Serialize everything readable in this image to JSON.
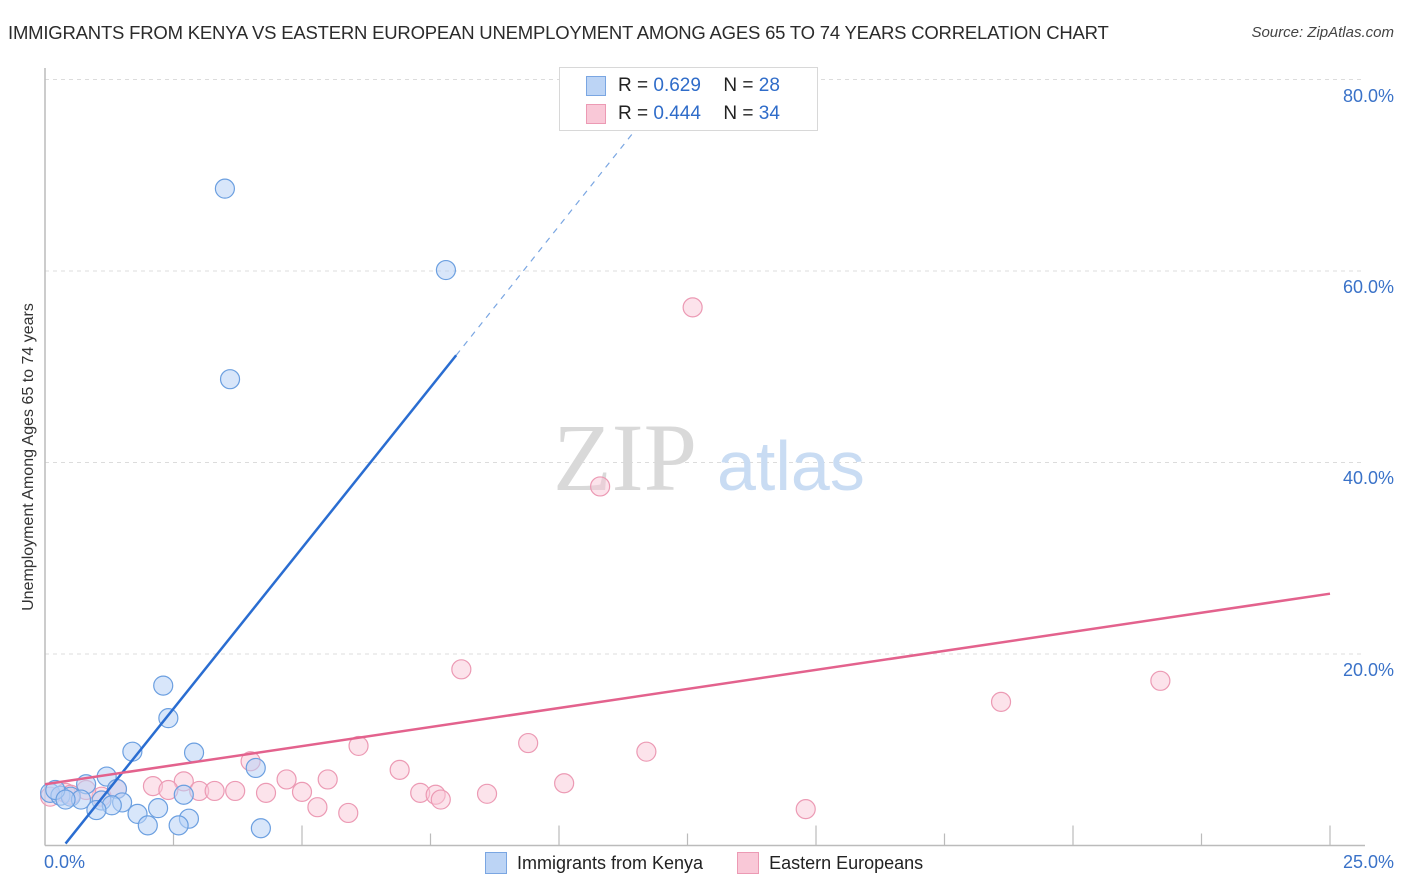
{
  "header": {
    "title": "IMMIGRANTS FROM KENYA VS EASTERN EUROPEAN UNEMPLOYMENT AMONG AGES 65 TO 74 YEARS CORRELATION CHART",
    "source": "Source: ZipAtlas.com"
  },
  "watermark": {
    "zip": "ZIP",
    "atlas": "atlas"
  },
  "legend_top": {
    "rows": [
      {
        "r_label": "R =",
        "r_value": "0.629",
        "n_label": "N =",
        "n_value": "28",
        "color": "#bcd4f5"
      },
      {
        "r_label": "R =",
        "r_value": "0.444",
        "n_label": "N =",
        "n_value": "34",
        "color": "#f9c8d7"
      }
    ]
  },
  "legend_bottom": {
    "items": [
      {
        "label": "Immigrants from Kenya",
        "color": "#bcd4f5"
      },
      {
        "label": "Eastern Europeans",
        "color": "#f9c8d7"
      }
    ]
  },
  "axes": {
    "ylabel": "Unemployment Among Ages 65 to 74 years",
    "y_ticks": [
      "80.0%",
      "60.0%",
      "40.0%",
      "20.0%"
    ],
    "x_min_label": "0.0%",
    "x_max_label": "25.0%"
  },
  "chart_data": {
    "type": "scatter",
    "title": "IMMIGRANTS FROM KENYA VS EASTERN EUROPEAN UNEMPLOYMENT AMONG AGES 65 TO 74 YEARS CORRELATION CHART",
    "xlabel": "Immigrants from Kenya (%)",
    "ylabel": "Unemployment Among Ages 65 to 74 years",
    "xlim": [
      0,
      25
    ],
    "ylim": [
      0,
      82
    ],
    "x_ticks": [
      "0.0%",
      "25.0%"
    ],
    "y_ticks": [
      "20.0%",
      "40.0%",
      "60.0%",
      "80.0%"
    ],
    "grid": "horizontal dashed",
    "legend_position": "bottom",
    "series": [
      {
        "name": "Immigrants from Kenya",
        "color": "#6b9fe0",
        "r": 0.629,
        "n": 28,
        "points": [
          [
            3.5,
            68.6
          ],
          [
            7.8,
            60.1
          ],
          [
            3.6,
            48.7
          ],
          [
            2.3,
            16.7
          ],
          [
            2.4,
            13.3
          ],
          [
            1.7,
            9.8
          ],
          [
            2.9,
            9.7
          ],
          [
            4.1,
            8.1
          ],
          [
            1.2,
            7.2
          ],
          [
            0.8,
            6.4
          ],
          [
            1.4,
            5.9
          ],
          [
            0.1,
            5.5
          ],
          [
            0.3,
            5.2
          ],
          [
            0.5,
            5.1
          ],
          [
            0.7,
            4.8
          ],
          [
            1.1,
            4.7
          ],
          [
            1.5,
            4.5
          ],
          [
            2.7,
            5.3
          ],
          [
            1.3,
            4.2
          ],
          [
            1.0,
            3.7
          ],
          [
            2.2,
            3.9
          ],
          [
            1.8,
            3.3
          ],
          [
            2.8,
            2.8
          ],
          [
            2.0,
            2.1
          ],
          [
            2.6,
            2.1
          ],
          [
            4.2,
            1.8
          ],
          [
            0.2,
            5.8
          ],
          [
            0.4,
            4.8
          ]
        ],
        "trend": {
          "x0": 0.4,
          "y0": 0.2,
          "x1": 8.0,
          "y1": 51.2,
          "dashed_to": [
            11.6,
            75.5
          ]
        }
      },
      {
        "name": "Eastern Europeans",
        "color": "#e8799c",
        "r": 0.444,
        "n": 34,
        "points": [
          [
            12.6,
            56.2
          ],
          [
            10.8,
            37.5
          ],
          [
            8.1,
            18.4
          ],
          [
            21.7,
            17.2
          ],
          [
            18.6,
            15.0
          ],
          [
            6.1,
            10.4
          ],
          [
            9.4,
            10.7
          ],
          [
            11.7,
            9.8
          ],
          [
            4.0,
            8.8
          ],
          [
            6.9,
            7.9
          ],
          [
            10.1,
            6.5
          ],
          [
            2.7,
            6.7
          ],
          [
            2.1,
            6.2
          ],
          [
            4.7,
            6.9
          ],
          [
            5.5,
            6.9
          ],
          [
            1.4,
            5.9
          ],
          [
            2.4,
            5.8
          ],
          [
            3.0,
            5.7
          ],
          [
            3.3,
            5.7
          ],
          [
            3.7,
            5.7
          ],
          [
            4.3,
            5.5
          ],
          [
            5.0,
            5.6
          ],
          [
            7.3,
            5.5
          ],
          [
            7.6,
            5.3
          ],
          [
            8.6,
            5.4
          ],
          [
            7.7,
            4.8
          ],
          [
            5.3,
            4.0
          ],
          [
            5.9,
            3.4
          ],
          [
            14.8,
            3.8
          ],
          [
            1.1,
            5.1
          ],
          [
            0.8,
            5.8
          ],
          [
            0.4,
            5.5
          ],
          [
            0.1,
            5.1
          ],
          [
            0.5,
            5.3
          ]
        ],
        "trend": {
          "x0": 0.0,
          "y0": 6.4,
          "x1": 25.0,
          "y1": 26.3
        }
      }
    ]
  }
}
